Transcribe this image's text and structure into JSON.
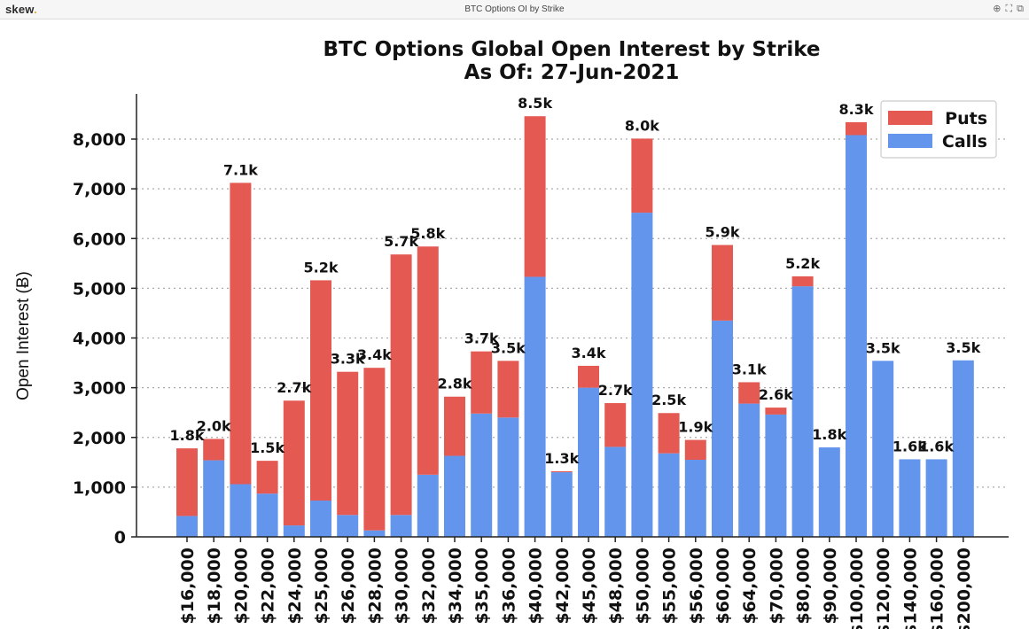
{
  "window": {
    "brand": "skew",
    "brand_dot": ".",
    "title": "BTC Options OI by Strike",
    "icons": [
      "zoom-in-icon",
      "fullscreen-icon",
      "copy-icon"
    ]
  },
  "colors": {
    "puts": "#e45a53",
    "calls": "#6495ed",
    "grid": "#aaaaaa",
    "axis": "#222222"
  },
  "chart_data": {
    "type": "bar",
    "stacked": true,
    "title": "BTC Options Global Open Interest by Strike",
    "subtitle": "As Of: 27-Jun-2021",
    "xlabel": "",
    "ylabel": "Open Interest (Ƀ)",
    "ylim": [
      0,
      8800
    ],
    "yticks": [
      0,
      1000,
      2000,
      3000,
      4000,
      5000,
      6000,
      7000,
      8000
    ],
    "ytick_labels": [
      "0",
      "1,000",
      "2,000",
      "3,000",
      "4,000",
      "5,000",
      "6,000",
      "7,000",
      "8,000"
    ],
    "grid": "horizontal dotted",
    "legend_position": "top-right",
    "categories": [
      "$16,000",
      "$18,000",
      "$20,000",
      "$22,000",
      "$24,000",
      "$25,000",
      "$26,000",
      "$28,000",
      "$30,000",
      "$32,000",
      "$34,000",
      "$35,000",
      "$36,000",
      "$40,000",
      "$42,000",
      "$45,000",
      "$48,000",
      "$50,000",
      "$55,000",
      "$56,000",
      "$60,000",
      "$64,000",
      "$70,000",
      "$80,000",
      "$90,000",
      "$100,000",
      "$120,000",
      "$140,000",
      "$160,000",
      "$200,000"
    ],
    "series": [
      {
        "name": "Calls",
        "values": [
          420,
          1540,
          1060,
          870,
          230,
          730,
          440,
          130,
          440,
          1250,
          1630,
          2480,
          2400,
          5230,
          1300,
          3000,
          1810,
          6520,
          1680,
          1550,
          4350,
          2680,
          2460,
          5040,
          1800,
          8080,
          3540,
          1560,
          1560,
          3550
        ]
      },
      {
        "name": "Puts",
        "values": [
          1360,
          430,
          6060,
          660,
          2510,
          4430,
          2880,
          3270,
          5240,
          4590,
          1190,
          1250,
          1140,
          3230,
          20,
          440,
          880,
          1490,
          810,
          400,
          1520,
          430,
          140,
          200,
          0,
          260,
          0,
          0,
          0,
          0
        ]
      }
    ],
    "data_labels": [
      "1.8k",
      "2.0k",
      "7.1k",
      "1.5k",
      "2.7k",
      "5.2k",
      "3.3k",
      "3.4k",
      "5.7k",
      "5.8k",
      "2.8k",
      "3.7k",
      "3.5k",
      "8.5k",
      "1.3k",
      "3.4k",
      "2.7k",
      "8.0k",
      "2.5k",
      "1.9k",
      "5.9k",
      "3.1k",
      "2.6k",
      "5.2k",
      "1.8k",
      "8.3k",
      "3.5k",
      "1.6k",
      "1.6k",
      "3.5k"
    ]
  }
}
